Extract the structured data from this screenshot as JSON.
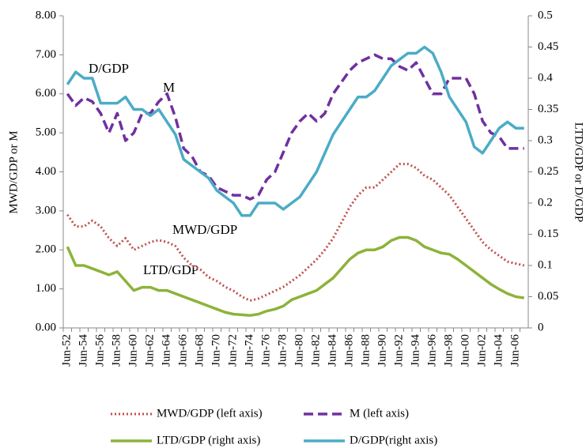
{
  "chart_data": {
    "type": "line",
    "y_label": "MWD/GDP or M",
    "y2_label": "LTD/GDP or D/GDP",
    "categories": [
      "Jun-52",
      null,
      "Jun-54",
      null,
      "Jun-56",
      null,
      "Jun-58",
      null,
      "Jun-60",
      null,
      "Jun-62",
      null,
      "Jun-64",
      null,
      "Jun-66",
      null,
      "Jun-68",
      null,
      "Jun-70",
      null,
      "Jun-72",
      null,
      "Jun-74",
      null,
      "Jun-76",
      null,
      "Jun-78",
      null,
      "Jun-80",
      null,
      "Jun-82",
      null,
      "Jun-84",
      null,
      "Jun-86",
      null,
      "Jun-88",
      null,
      "Jun-90",
      null,
      "Jun-92",
      null,
      "Jun-94",
      null,
      "Jun-96",
      null,
      "Jun-98",
      null,
      "Jun-00",
      null,
      "Jun-02",
      null,
      "Jun-04",
      null,
      "Jun-06",
      null
    ],
    "ylim": [
      0,
      8
    ],
    "yticks": [
      {
        "value": 0,
        "label": "0.00"
      },
      {
        "value": 1,
        "label": "1.00"
      },
      {
        "value": 2,
        "label": "2.00"
      },
      {
        "value": 3,
        "label": "3.00"
      },
      {
        "value": 4,
        "label": "4.00"
      },
      {
        "value": 5,
        "label": "5.00"
      },
      {
        "value": 6,
        "label": "6.00"
      },
      {
        "value": 7,
        "label": "7.00"
      },
      {
        "value": 8,
        "label": "8.00"
      }
    ],
    "y2lim": [
      0,
      0.5
    ],
    "y2ticks": [
      0,
      0.05,
      0.1,
      0.15,
      0.2,
      0.25,
      0.3,
      0.35,
      0.4,
      0.45,
      0.5
    ],
    "series": [
      {
        "name": "MWD/GDP (left axis)",
        "color": "#c0504d",
        "style": "dotted",
        "values": [
          2.9,
          2.6,
          2.6,
          2.75,
          2.6,
          2.3,
          2.1,
          2.3,
          2.0,
          2.1,
          2.2,
          2.25,
          2.2,
          2.1,
          1.8,
          1.6,
          1.5,
          1.3,
          1.2,
          1.05,
          0.95,
          0.8,
          0.7,
          0.75,
          0.85,
          0.95,
          1.05,
          1.2,
          1.35,
          1.55,
          1.75,
          2.0,
          2.3,
          2.7,
          3.1,
          3.4,
          3.6,
          3.6,
          3.8,
          4.0,
          4.2,
          4.2,
          4.1,
          3.9,
          3.8,
          3.6,
          3.4,
          3.1,
          2.8,
          2.5,
          2.2,
          2.0,
          1.85,
          1.7,
          1.65,
          1.6
        ]
      },
      {
        "name": "M (left axis)",
        "color": "#7030a0",
        "style": "dashed",
        "values": [
          6.0,
          5.7,
          5.9,
          5.8,
          5.5,
          5.0,
          5.5,
          4.8,
          5.0,
          5.5,
          5.5,
          5.8,
          6.0,
          5.4,
          4.6,
          4.4,
          4.0,
          3.9,
          3.6,
          3.5,
          3.4,
          3.4,
          3.3,
          3.4,
          3.8,
          4.0,
          4.5,
          5.0,
          5.3,
          5.5,
          5.3,
          5.5,
          6.0,
          6.3,
          6.6,
          6.8,
          6.9,
          7.0,
          6.9,
          6.9,
          6.7,
          6.6,
          6.8,
          6.4,
          6.0,
          6.0,
          6.4,
          6.4,
          6.4,
          6.0,
          5.3,
          5.0,
          4.9,
          4.6,
          4.6,
          4.6
        ]
      },
      {
        "name": "LTD/GDP (right axis)",
        "color": "#8db33a",
        "style": "solid",
        "axis": "y2",
        "values": [
          0.13,
          0.1,
          0.1,
          0.095,
          0.09,
          0.085,
          0.09,
          0.075,
          0.06,
          0.065,
          0.065,
          0.06,
          0.06,
          0.055,
          0.05,
          0.045,
          0.04,
          0.035,
          0.03,
          0.025,
          0.022,
          0.021,
          0.02,
          0.022,
          0.027,
          0.03,
          0.035,
          0.045,
          0.05,
          0.055,
          0.06,
          0.07,
          0.08,
          0.095,
          0.11,
          0.12,
          0.125,
          0.125,
          0.13,
          0.14,
          0.145,
          0.145,
          0.14,
          0.13,
          0.125,
          0.12,
          0.118,
          0.11,
          0.1,
          0.09,
          0.08,
          0.07,
          0.062,
          0.055,
          0.05,
          0.048
        ]
      },
      {
        "name": "D/GDP(right axis)",
        "color": "#4bacc6",
        "style": "solid",
        "axis": "y2",
        "values": [
          0.39,
          0.41,
          0.4,
          0.4,
          0.36,
          0.36,
          0.36,
          0.37,
          0.35,
          0.35,
          0.34,
          0.35,
          0.33,
          0.31,
          0.27,
          0.26,
          0.25,
          0.24,
          0.22,
          0.21,
          0.2,
          0.18,
          0.18,
          0.2,
          0.2,
          0.2,
          0.19,
          0.2,
          0.21,
          0.23,
          0.25,
          0.28,
          0.31,
          0.33,
          0.35,
          0.37,
          0.37,
          0.38,
          0.4,
          0.42,
          0.43,
          0.44,
          0.44,
          0.45,
          0.44,
          0.41,
          0.37,
          0.35,
          0.33,
          0.29,
          0.28,
          0.3,
          0.32,
          0.33,
          0.32,
          0.32
        ]
      }
    ],
    "annotations": [
      "D/GDP",
      "M",
      "MWD/GDP",
      "LTD/GDP"
    ]
  }
}
